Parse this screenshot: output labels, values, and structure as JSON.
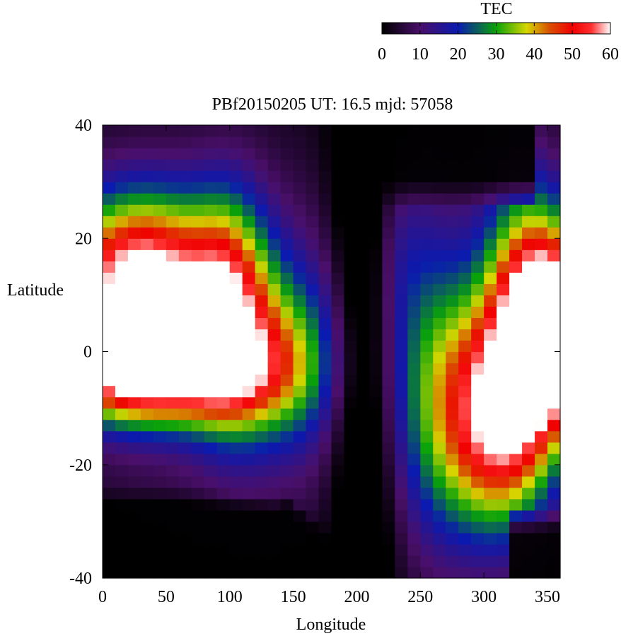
{
  "chart_data": {
    "type": "heatmap",
    "title": "PBf20150205  UT: 16.5  mjd: 57058",
    "xlabel": "Longitude",
    "ylabel": "Latitude",
    "xlim": [
      0,
      360
    ],
    "ylim": [
      -40,
      40
    ],
    "x_ticks": [
      "0",
      "50",
      "100",
      "150",
      "200",
      "250",
      "300",
      "350"
    ],
    "y_ticks": [
      "40",
      "20",
      "0",
      "-20",
      "-40"
    ],
    "grid": false,
    "colorbar": {
      "label": "TEC",
      "range": [
        0,
        60
      ],
      "ticks": [
        "0",
        "10",
        "20",
        "30",
        "40",
        "50",
        "60"
      ],
      "placement": "top-right",
      "colormap": [
        {
          "value": 0,
          "color": "#000000"
        },
        {
          "value": 10,
          "color": "#4a0f6a"
        },
        {
          "value": 20,
          "color": "#0a1ab0"
        },
        {
          "value": 30,
          "color": "#0aa20a"
        },
        {
          "value": 38,
          "color": "#d6d600"
        },
        {
          "value": 44,
          "color": "#d85000"
        },
        {
          "value": 50,
          "color": "#f00000"
        },
        {
          "value": 55,
          "color": "#ff3030"
        },
        {
          "value": 60,
          "color": "#ffffff"
        }
      ]
    },
    "grid_resolution": {
      "lon_step": 10,
      "lat_step": 2
    },
    "features": {
      "west_crest_north": {
        "lon": 35,
        "lat": 12,
        "tec": 62
      },
      "west_crest_south": {
        "lon": 45,
        "lat": -3,
        "tec": 62
      },
      "east_crest": {
        "lon": 355,
        "lat": 4,
        "tec": 62
      },
      "south_east_band": {
        "lon": 305,
        "lat": -15,
        "tec": 48
      },
      "north_dark_region": {
        "lon": 210,
        "lat": 35,
        "tec": 1
      },
      "south_dark_region": {
        "lon": 120,
        "lat": -36,
        "tec": 0
      }
    }
  }
}
